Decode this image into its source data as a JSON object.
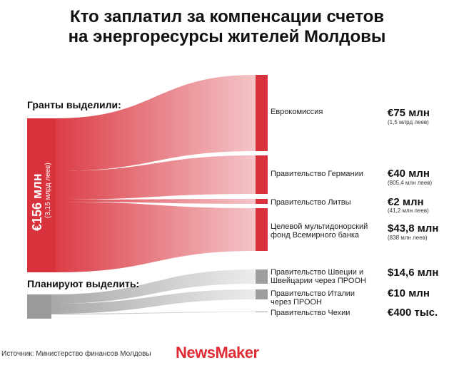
{
  "title_line1": "Кто заплатил за компенсации счетов",
  "title_line2": "на энергоресурсы жителей Молдовы",
  "grants_label": "Гранты выделили:",
  "planned_label": "Планируют выделить:",
  "total": {
    "amount": "€156 млн",
    "sub": "(3,15 млрд леев)"
  },
  "colors": {
    "red": "#d8323c",
    "red_light": "#f4c2c5",
    "gray": "#9e9e9e",
    "gray_light": "#e6e6e6"
  },
  "recipients": [
    {
      "name": "Еврокомиссия",
      "amount": "€75 млн",
      "sub": "(1,5 млрд леев)",
      "value": 75,
      "group": "grant"
    },
    {
      "name": "Правительство Германии",
      "amount": "€40 млн",
      "sub": "(805,4 млн леев)",
      "value": 40,
      "group": "grant"
    },
    {
      "name": "Правительство Литвы",
      "amount": "€2 млн",
      "sub": "(41,2 млн леев)",
      "value": 2,
      "group": "grant"
    },
    {
      "name": "Целевой мультидонорский фонд Всемирного банка",
      "amount": "$43,8 млн",
      "sub": "(838 млн леев)",
      "value": 43.8,
      "group": "grant"
    },
    {
      "name": "Правительство Швеции и Швейцарии через ПРООН",
      "amount": "$14,6 млн",
      "sub": "",
      "value": 14.6,
      "group": "planned"
    },
    {
      "name": "Правительство Италии через ПРООН",
      "amount": "€10 млн",
      "sub": "",
      "value": 10,
      "group": "planned"
    },
    {
      "name": "Правительство Чехии",
      "amount": "€400 тыс.",
      "sub": "",
      "value": 0.4,
      "group": "planned"
    }
  ],
  "source": "Источник: Министерство финансов Молдовы",
  "logo": "NewsMaker"
}
